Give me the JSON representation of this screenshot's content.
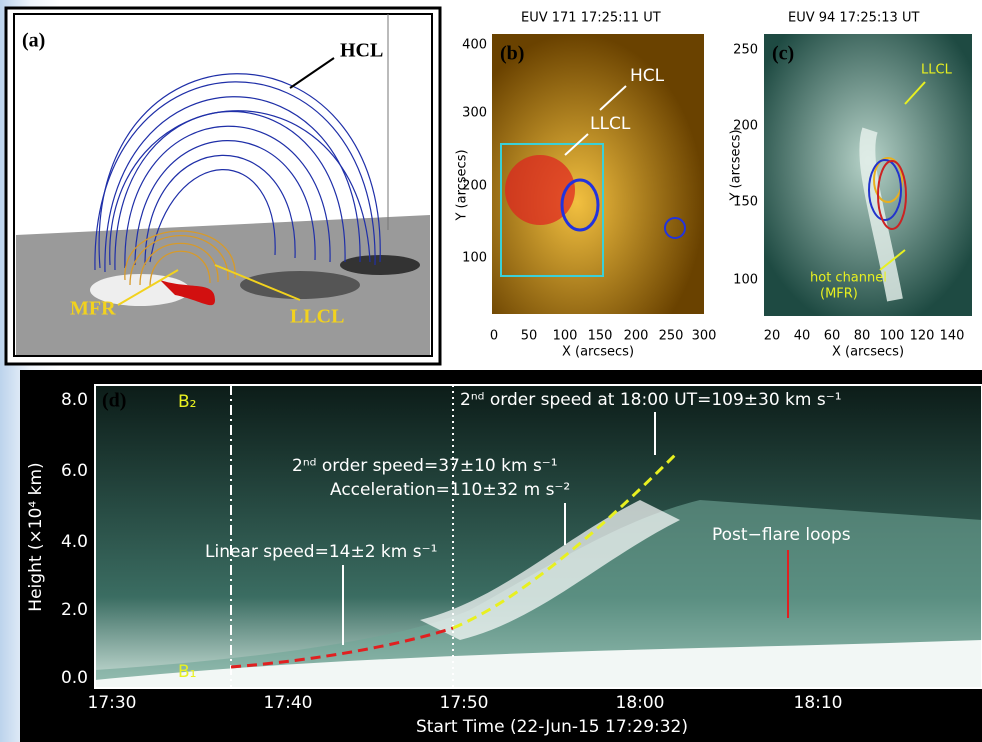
{
  "panel_a": {
    "label": "(a)",
    "annotations": [
      "HCL",
      "MFR",
      "LLCL"
    ]
  },
  "panel_b": {
    "label": "(b)",
    "title": "EUV 171  17:25:11 UT",
    "annotations": [
      "HCL",
      "LLCL"
    ],
    "y_axis_label": "Y (arcsecs)",
    "x_axis_label": "X (arcsecs)",
    "yticks": [
      "100",
      "200",
      "300",
      "400"
    ],
    "xticks": [
      "0",
      "50",
      "100",
      "150",
      "200",
      "250",
      "300"
    ]
  },
  "panel_c": {
    "label": "(c)",
    "title": "EUV 94  17:25:13 UT",
    "annotations": [
      "LLCL",
      "hot channel",
      "(MFR)"
    ],
    "y_axis_label": "Y (arcsecs)",
    "x_axis_label": "X (arcsecs)",
    "yticks": [
      "100",
      "150",
      "200",
      "250"
    ],
    "xticks": [
      "20",
      "40",
      "60",
      "80",
      "100",
      "120",
      "140"
    ]
  },
  "panel_d": {
    "label": "(d)",
    "markers": [
      "B₂",
      "B₁"
    ],
    "annotations": [
      "2ⁿᵈ order speed at 18:00 UT=109±30 km s⁻¹",
      "2ⁿᵈ order speed=37±10 km s⁻¹",
      "Acceleration=110±32 m s⁻²",
      "Linear speed=14±2 km s⁻¹",
      "Post−flare loops"
    ],
    "y_axis_label": "Height (×10⁴ km)",
    "x_axis_label": "Start Time (22-Jun-15 17:29:32)",
    "yticks": [
      "0.0",
      "2.0",
      "4.0",
      "6.0",
      "8.0"
    ],
    "xticks": [
      "17:30",
      "17:40",
      "17:50",
      "18:00",
      "18:10"
    ]
  }
}
